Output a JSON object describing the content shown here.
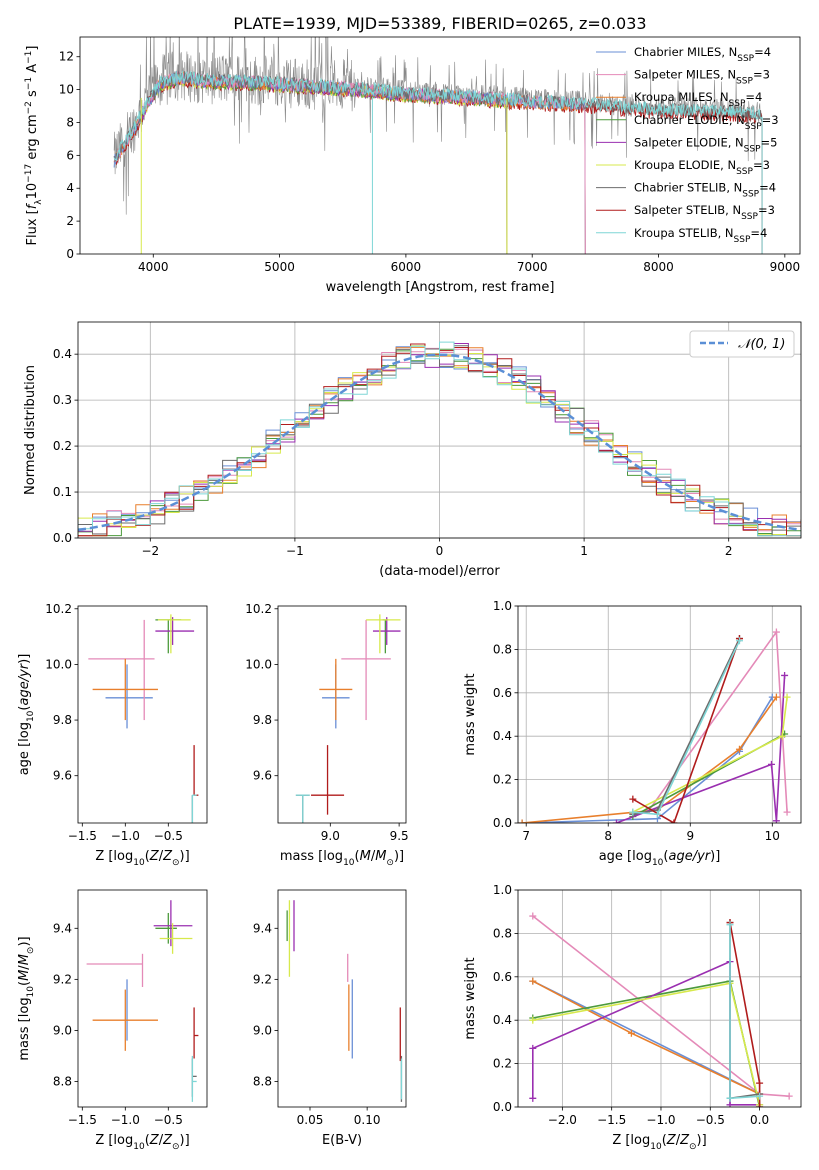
{
  "figure": {
    "title": "PLATE=1939, MJD=53389, FIBERID=0265, z=0.033"
  },
  "colors": {
    "Chabrier MILES": "#6a8fd6",
    "Salpeter MILES": "#e48ab8",
    "Kroupa MILES": "#e87f2c",
    "Chabrier ELODIE": "#4c9a3c",
    "Salpeter ELODIE": "#9a2fb0",
    "Kroupa ELODIE": "#d7e94c",
    "Chabrier STELIB": "#6d6d6d",
    "Salpeter STELIB": "#b01c1c",
    "Kroupa STELIB": "#7fd6d6",
    "gauss": "#5b8fd6"
  },
  "chart_data": [
    {
      "id": "spectrum",
      "type": "line",
      "xlabel": "wavelength [Angstrom, rest frame]",
      "ylabel": "Flux [f_λ 10^-17 erg cm^-2 s^-1 A^-1]",
      "xlim": [
        3420,
        9120
      ],
      "ylim": [
        0,
        13.2
      ],
      "xticks": [
        4000,
        5000,
        6000,
        7000,
        8000,
        9000
      ],
      "yticks": [
        0,
        2,
        4,
        6,
        8,
        10,
        12
      ],
      "grid": false,
      "legend_position": "top-right",
      "observed_range": [
        3690,
        8820
      ],
      "continuum": [
        [
          3690,
          5.8
        ],
        [
          3750,
          6.6
        ],
        [
          3850,
          7.8
        ],
        [
          3950,
          9.3
        ],
        [
          4050,
          10.5
        ],
        [
          4200,
          10.9
        ],
        [
          4400,
          10.7
        ],
        [
          4800,
          10.6
        ],
        [
          5200,
          10.4
        ],
        [
          5600,
          10.2
        ],
        [
          6000,
          9.9
        ],
        [
          6500,
          9.7
        ],
        [
          7000,
          9.4
        ],
        [
          7500,
          9.2
        ],
        [
          8000,
          8.9
        ],
        [
          8500,
          8.8
        ],
        [
          8820,
          8.6
        ]
      ],
      "series": [
        {
          "name": "Chabrier MILES",
          "nssp": "4",
          "range": [
            3690,
            7420
          ]
        },
        {
          "name": "Salpeter MILES",
          "nssp": "3",
          "range": [
            3690,
            7420
          ]
        },
        {
          "name": "Kroupa MILES",
          "nssp": "4",
          "range": [
            3690,
            7420
          ]
        },
        {
          "name": "Chabrier ELODIE",
          "nssp": "3",
          "range": [
            3900,
            6800
          ]
        },
        {
          "name": "Salpeter ELODIE",
          "nssp": "5",
          "range": [
            3900,
            6800
          ]
        },
        {
          "name": "Kroupa ELODIE",
          "nssp": "3",
          "range": [
            3900,
            6800
          ]
        },
        {
          "name": "Chabrier STELIB",
          "nssp": "4",
          "range": [
            3690,
            8820
          ]
        },
        {
          "name": "Salpeter STELIB",
          "nssp": "3",
          "range": [
            3690,
            8820
          ]
        },
        {
          "name": "Kroupa STELIB",
          "nssp": "4",
          "range": [
            3690,
            8820
          ]
        }
      ]
    },
    {
      "id": "residuals",
      "type": "step",
      "xlabel": "(data-model)/error",
      "ylabel": "Normed distribution",
      "xlim": [
        -2.5,
        2.5
      ],
      "ylim": [
        0,
        0.47
      ],
      "xticks": [
        -2,
        -1,
        0,
        1,
        2
      ],
      "yticks": [
        0.0,
        0.1,
        0.2,
        0.3,
        0.4
      ],
      "grid": true,
      "bin_width": 0.1,
      "legend_position": "top-right",
      "gaussian_label": "𝒩(0, 1)"
    },
    {
      "id": "age_vs_Z",
      "type": "scatter",
      "xlabel": "Z [log10(Z/Z⊙)]",
      "ylabel": "age [log10(age/yr)]",
      "xlim": [
        -1.55,
        -0.05
      ],
      "ylim": [
        9.43,
        10.21
      ],
      "xticks": [
        -1.5,
        -1.0,
        -0.5
      ],
      "yticks": [
        9.6,
        9.8,
        10.0,
        10.2
      ],
      "points": [
        {
          "name": "Chabrier MILES",
          "x": -0.98,
          "xerr": [
            0.25,
            0.3
          ],
          "y": 9.88,
          "yerr": [
            0.11,
            0.12
          ]
        },
        {
          "name": "Salpeter MILES",
          "x": -0.78,
          "xerr": [
            0.65,
            0.12
          ],
          "y": 10.02,
          "yerr": [
            0.22,
            0.14
          ]
        },
        {
          "name": "Kroupa MILES",
          "x": -1.0,
          "xerr": [
            0.38,
            0.38
          ],
          "y": 9.91,
          "yerr": [
            0.11,
            0.11
          ]
        },
        {
          "name": "Chabrier ELODIE",
          "x": -0.5,
          "xerr": [
            0.15,
            0.15
          ],
          "y": 10.16,
          "yerr": [
            0.12,
            0.0
          ]
        },
        {
          "name": "Salpeter ELODIE",
          "x": -0.45,
          "xerr": [
            0.2,
            0.25
          ],
          "y": 10.12,
          "yerr": [
            0.05,
            0.05
          ]
        },
        {
          "name": "Kroupa ELODIE",
          "x": -0.47,
          "xerr": [
            0.15,
            0.23
          ],
          "y": 10.16,
          "yerr": [
            0.12,
            0.02
          ]
        },
        {
          "name": "Chabrier STELIB",
          "x": -0.22,
          "xerr": [
            0.0,
            0.0
          ],
          "y": 9.53,
          "yerr": [
            0.19,
            0.0
          ]
        },
        {
          "name": "Salpeter STELIB",
          "x": -0.2,
          "xerr": [
            0.0,
            0.05
          ],
          "y": 9.53,
          "yerr": [
            0.0,
            0.18
          ]
        },
        {
          "name": "Kroupa STELIB",
          "x": -0.22,
          "xerr": [
            0.0,
            0.05
          ],
          "y": 9.53,
          "yerr": [
            0.19,
            0.0
          ]
        }
      ]
    },
    {
      "id": "age_vs_mass",
      "type": "scatter",
      "xlabel": "mass [log10(M/M⊙)]",
      "ylabel": "",
      "xlim": [
        8.62,
        9.55
      ],
      "ylim": [
        9.43,
        10.21
      ],
      "xticks": [
        9.0,
        9.5
      ],
      "yticks": [
        9.6,
        9.8,
        10.0,
        10.2
      ],
      "points": [
        {
          "name": "Chabrier MILES",
          "x": 9.04,
          "xerr": [
            0.1,
            0.1
          ],
          "y": 9.88,
          "yerr": [
            0.11,
            0.12
          ]
        },
        {
          "name": "Salpeter MILES",
          "x": 9.26,
          "xerr": [
            0.18,
            0.18
          ],
          "y": 10.02,
          "yerr": [
            0.22,
            0.14
          ]
        },
        {
          "name": "Kroupa MILES",
          "x": 9.04,
          "xerr": [
            0.12,
            0.12
          ],
          "y": 9.91,
          "yerr": [
            0.11,
            0.11
          ]
        },
        {
          "name": "Chabrier ELODIE",
          "x": 9.4,
          "xerr": [
            0.02,
            0.02
          ],
          "y": 10.16,
          "yerr": [
            0.12,
            0.0
          ]
        },
        {
          "name": "Salpeter ELODIE",
          "x": 9.41,
          "xerr": [
            0.1,
            0.1
          ],
          "y": 10.12,
          "yerr": [
            0.05,
            0.05
          ]
        },
        {
          "name": "Kroupa ELODIE",
          "x": 9.36,
          "xerr": [
            0.1,
            0.15
          ],
          "y": 10.16,
          "yerr": [
            0.12,
            0.02
          ]
        },
        {
          "name": "Chabrier STELIB",
          "x": 8.8,
          "xerr": [
            0.05,
            0.05
          ],
          "y": 9.53,
          "yerr": [
            0.19,
            0.0
          ]
        },
        {
          "name": "Salpeter STELIB",
          "x": 8.98,
          "xerr": [
            0.12,
            0.12
          ],
          "y": 9.53,
          "yerr": [
            0.07,
            0.18
          ]
        },
        {
          "name": "Kroupa STELIB",
          "x": 8.8,
          "xerr": [
            0.05,
            0.05
          ],
          "y": 9.53,
          "yerr": [
            0.19,
            0.0
          ]
        }
      ]
    },
    {
      "id": "weight_vs_age",
      "type": "line",
      "xlabel": "age [log10(age/yr)]",
      "ylabel": "mass weight",
      "xlim": [
        6.9,
        10.35
      ],
      "ylim": [
        0,
        1.0
      ],
      "xticks": [
        7,
        8,
        9,
        10
      ],
      "yticks": [
        0.0,
        0.2,
        0.4,
        0.6,
        0.8,
        1.0
      ],
      "grid": true,
      "series": [
        {
          "name": "Chabrier MILES",
          "points": [
            [
              6.95,
              0.0
            ],
            [
              8.6,
              0.02
            ],
            [
              9.6,
              0.33
            ],
            [
              10.0,
              0.58
            ]
          ]
        },
        {
          "name": "Salpeter MILES",
          "points": [
            [
              8.5,
              0.06
            ],
            [
              10.05,
              0.88
            ],
            [
              10.18,
              0.05
            ]
          ]
        },
        {
          "name": "Kroupa MILES",
          "points": [
            [
              6.95,
              0.0
            ],
            [
              8.6,
              0.06
            ],
            [
              9.6,
              0.34
            ],
            [
              10.05,
              0.58
            ]
          ]
        },
        {
          "name": "Chabrier ELODIE",
          "points": [
            [
              8.3,
              0.03
            ],
            [
              10.15,
              0.41
            ]
          ]
        },
        {
          "name": "Salpeter ELODIE",
          "points": [
            [
              8.1,
              0.0
            ],
            [
              9.99,
              0.27
            ],
            [
              10.05,
              0.01
            ],
            [
              10.15,
              0.68
            ]
          ]
        },
        {
          "name": "Kroupa ELODIE",
          "points": [
            [
              8.3,
              0.05
            ],
            [
              10.12,
              0.4
            ],
            [
              10.18,
              0.58
            ]
          ]
        },
        {
          "name": "Chabrier STELIB",
          "points": [
            [
              8.3,
              0.04
            ],
            [
              8.6,
              0.06
            ],
            [
              9.6,
              0.85
            ]
          ]
        },
        {
          "name": "Salpeter STELIB",
          "points": [
            [
              8.3,
              0.11
            ],
            [
              8.8,
              0.0
            ],
            [
              9.6,
              0.85
            ]
          ]
        },
        {
          "name": "Kroupa STELIB",
          "points": [
            [
              8.3,
              0.05
            ],
            [
              8.6,
              0.04
            ],
            [
              9.6,
              0.84
            ]
          ]
        }
      ]
    },
    {
      "id": "mass_vs_Z",
      "type": "scatter",
      "xlabel": "Z [log10(Z/Z⊙)]",
      "ylabel": "mass [log10(M/M⊙)]",
      "xlim": [
        -1.55,
        -0.05
      ],
      "ylim": [
        8.7,
        9.55
      ],
      "xticks": [
        -1.5,
        -1.0,
        -0.5
      ],
      "yticks": [
        8.8,
        9.0,
        9.2,
        9.4
      ],
      "points": [
        {
          "name": "Chabrier MILES",
          "x": -0.98,
          "xerr": [
            0.0,
            0.0
          ],
          "y": 9.04,
          "yerr": [
            0.08,
            0.16
          ]
        },
        {
          "name": "Salpeter MILES",
          "x": -0.8,
          "xerr": [
            0.65,
            0.0
          ],
          "y": 9.26,
          "yerr": [
            0.09,
            0.04
          ]
        },
        {
          "name": "Kroupa MILES",
          "x": -1.0,
          "xerr": [
            0.38,
            0.38
          ],
          "y": 9.04,
          "yerr": [
            0.12,
            0.12
          ]
        },
        {
          "name": "Chabrier ELODIE",
          "x": -0.5,
          "xerr": [
            0.15,
            0.1
          ],
          "y": 9.4,
          "yerr": [
            0.06,
            0.06
          ]
        },
        {
          "name": "Salpeter ELODIE",
          "x": -0.47,
          "xerr": [
            0.2,
            0.25
          ],
          "y": 9.41,
          "yerr": [
            0.08,
            0.1
          ]
        },
        {
          "name": "Kroupa ELODIE",
          "x": -0.45,
          "xerr": [
            0.15,
            0.23
          ],
          "y": 9.36,
          "yerr": [
            0.06,
            0.06
          ]
        },
        {
          "name": "Chabrier STELIB",
          "x": -0.22,
          "xerr": [
            0.0,
            0.05
          ],
          "y": 8.82,
          "yerr": [
            0.08,
            0.07
          ]
        },
        {
          "name": "Salpeter STELIB",
          "x": -0.2,
          "xerr": [
            0.0,
            0.05
          ],
          "y": 8.98,
          "yerr": [
            0.09,
            0.11
          ]
        },
        {
          "name": "Kroupa STELIB",
          "x": -0.22,
          "xerr": [
            0.0,
            0.05
          ],
          "y": 8.8,
          "yerr": [
            0.08,
            0.1
          ]
        }
      ]
    },
    {
      "id": "mass_vs_EBV",
      "type": "scatter",
      "xlabel": "E(B-V)",
      "ylabel": "",
      "xlim": [
        0.022,
        0.134
      ],
      "ylim": [
        8.7,
        9.55
      ],
      "xticks": [
        0.05,
        0.1
      ],
      "yticks": [
        8.8,
        9.0,
        9.2,
        9.4
      ],
      "points": [
        {
          "name": "Chabrier MILES",
          "x": 0.087,
          "yerr": [
            0.13,
            0.18
          ],
          "y": 9.02
        },
        {
          "name": "Salpeter MILES",
          "x": 0.083,
          "yerr": [
            0.07,
            0.04
          ],
          "y": 9.26
        },
        {
          "name": "Kroupa MILES",
          "x": 0.084,
          "yerr": [
            0.1,
            0.16
          ],
          "y": 9.02
        },
        {
          "name": "Chabrier ELODIE",
          "x": 0.03,
          "yerr": [
            0.05,
            0.07
          ],
          "y": 9.4
        },
        {
          "name": "Salpeter ELODIE",
          "x": 0.036,
          "yerr": [
            0.1,
            0.1
          ],
          "y": 9.41
        },
        {
          "name": "Kroupa ELODIE",
          "x": 0.032,
          "yerr": [
            0.15,
            0.15
          ],
          "y": 9.36
        },
        {
          "name": "Chabrier STELIB",
          "x": 0.13,
          "yerr": [
            0.1,
            0.08
          ],
          "y": 8.82
        },
        {
          "name": "Salpeter STELIB",
          "x": 0.129,
          "yerr": [
            0.1,
            0.11
          ],
          "y": 8.98
        },
        {
          "name": "Kroupa STELIB",
          "x": 0.13,
          "yerr": [
            0.07,
            0.09
          ],
          "y": 8.8
        }
      ]
    },
    {
      "id": "weight_vs_Z",
      "type": "line",
      "xlabel": "Z [log10(Z/Z⊙)]",
      "ylabel": "mass weight",
      "xlim": [
        -2.45,
        0.42
      ],
      "ylim": [
        0,
        1.0
      ],
      "xticks": [
        -2.0,
        -1.5,
        -1.0,
        -0.5,
        0.0
      ],
      "yticks": [
        0.0,
        0.2,
        0.4,
        0.6,
        0.8,
        1.0
      ],
      "grid": true,
      "series": [
        {
          "name": "Chabrier MILES",
          "points": [
            [
              -2.3,
              0.58
            ],
            [
              0.0,
              0.06
            ]
          ]
        },
        {
          "name": "Salpeter MILES",
          "points": [
            [
              -2.3,
              0.88
            ],
            [
              0.0,
              0.06
            ],
            [
              0.3,
              0.05
            ]
          ]
        },
        {
          "name": "Kroupa MILES",
          "points": [
            [
              -2.3,
              0.58
            ],
            [
              -1.3,
              0.34
            ],
            [
              0.0,
              0.06
            ]
          ]
        },
        {
          "name": "Chabrier ELODIE",
          "points": [
            [
              -2.3,
              0.41
            ],
            [
              -0.3,
              0.58
            ],
            [
              0.0,
              0.0
            ]
          ]
        },
        {
          "name": "Salpeter ELODIE",
          "points": [
            [
              -2.3,
              0.04
            ],
            [
              -2.3,
              0.27
            ],
            [
              -0.3,
              0.67
            ],
            [
              -0.3,
              0.01
            ],
            [
              0.0,
              0.01
            ]
          ]
        },
        {
          "name": "Kroupa ELODIE",
          "points": [
            [
              -2.3,
              0.4
            ],
            [
              -0.3,
              0.57
            ],
            [
              0.0,
              0.01
            ]
          ]
        },
        {
          "name": "Chabrier STELIB",
          "points": [
            [
              -0.3,
              0.85
            ],
            [
              -0.3,
              0.04
            ],
            [
              0.0,
              0.06
            ]
          ]
        },
        {
          "name": "Salpeter STELIB",
          "points": [
            [
              -0.3,
              0.85
            ],
            [
              0.0,
              0.11
            ],
            [
              0.0,
              0.0
            ]
          ]
        },
        {
          "name": "Kroupa STELIB",
          "points": [
            [
              -0.3,
              0.84
            ],
            [
              -0.3,
              0.04
            ],
            [
              0.0,
              0.05
            ]
          ]
        }
      ]
    }
  ]
}
